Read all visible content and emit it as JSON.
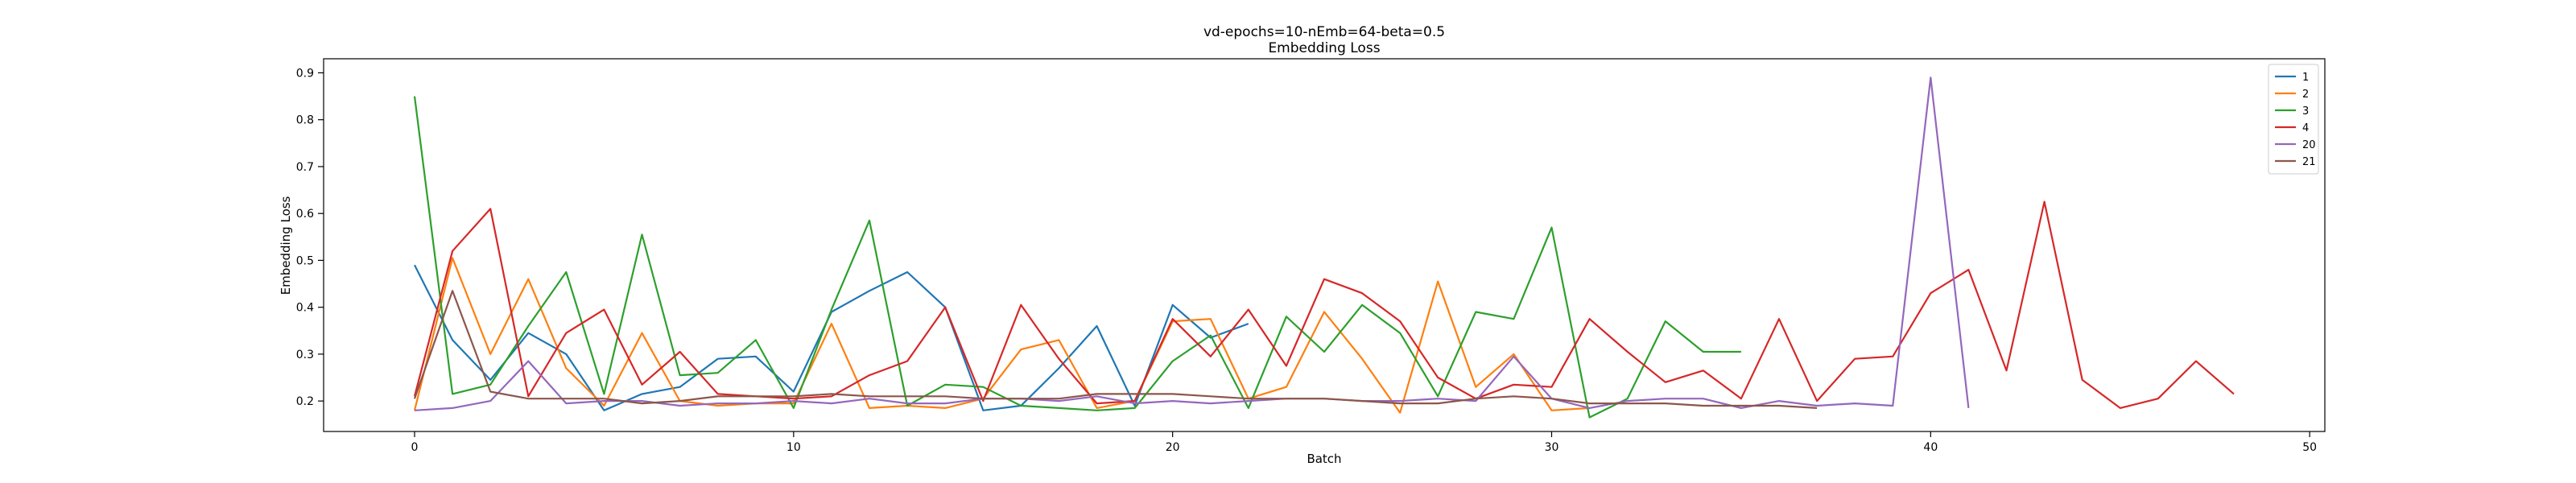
{
  "chart_data": {
    "type": "line",
    "title": "vd-epochs=10-nEmb=64-beta=0.5",
    "subtitle": "Embedding Loss",
    "xlabel": "Batch",
    "ylabel": "Embedding Loss",
    "xlim": [
      -2.4,
      50.4
    ],
    "ylim": [
      0.135,
      0.93
    ],
    "xticks": [
      0,
      10,
      20,
      30,
      40,
      50
    ],
    "yticks": [
      0.2,
      0.3,
      0.4,
      0.5,
      0.6,
      0.7,
      0.8,
      0.9
    ],
    "grid": false,
    "legend_position": "top-right",
    "series": [
      {
        "name": "1",
        "color": "#1f77b4",
        "values": [
          0.49,
          0.33,
          0.245,
          0.345,
          0.3,
          0.18,
          0.215,
          0.23,
          0.29,
          0.295,
          0.22,
          0.39,
          0.435,
          0.475,
          0.4,
          0.18,
          0.19,
          0.27,
          0.36,
          0.19,
          0.405,
          0.335,
          0.365
        ]
      },
      {
        "name": "2",
        "color": "#ff7f0e",
        "values": [
          0.18,
          0.505,
          0.3,
          0.46,
          0.27,
          0.19,
          0.345,
          0.2,
          0.19,
          0.195,
          0.195,
          0.365,
          0.185,
          0.19,
          0.185,
          0.205,
          0.31,
          0.33,
          0.185,
          0.2,
          0.37,
          0.375,
          0.205,
          0.23,
          0.39,
          0.29,
          0.175,
          0.455,
          0.23,
          0.3,
          0.18,
          0.185
        ]
      },
      {
        "name": "3",
        "color": "#2ca02c",
        "values": [
          0.85,
          0.215,
          0.235,
          0.36,
          0.475,
          0.215,
          0.555,
          0.255,
          0.26,
          0.33,
          0.185,
          0.395,
          0.585,
          0.19,
          0.235,
          0.23,
          0.19,
          0.185,
          0.18,
          0.185,
          0.285,
          0.34,
          0.185,
          0.38,
          0.305,
          0.405,
          0.345,
          0.21,
          0.39,
          0.375,
          0.57,
          0.165,
          0.205,
          0.37,
          0.305,
          0.305
        ]
      },
      {
        "name": "4",
        "color": "#d62728",
        "values": [
          0.21,
          0.52,
          0.61,
          0.21,
          0.345,
          0.395,
          0.235,
          0.305,
          0.215,
          0.21,
          0.205,
          0.21,
          0.255,
          0.285,
          0.4,
          0.2,
          0.405,
          0.29,
          0.195,
          0.2,
          0.375,
          0.295,
          0.395,
          0.275,
          0.46,
          0.43,
          0.37,
          0.25,
          0.205,
          0.235,
          0.23,
          0.375,
          0.305,
          0.24,
          0.265,
          0.205,
          0.375,
          0.2,
          0.29,
          0.295,
          0.43,
          0.48,
          0.265,
          0.625,
          0.245,
          0.185,
          0.205,
          0.285,
          0.215
        ]
      },
      {
        "name": "20",
        "color": "#9467bd",
        "values": [
          0.18,
          0.185,
          0.2,
          0.285,
          0.195,
          0.2,
          0.2,
          0.19,
          0.195,
          0.195,
          0.2,
          0.195,
          0.205,
          0.195,
          0.195,
          0.205,
          0.205,
          0.2,
          0.21,
          0.195,
          0.2,
          0.195,
          0.2,
          0.205,
          0.205,
          0.2,
          0.2,
          0.205,
          0.2,
          0.295,
          0.205,
          0.185,
          0.2,
          0.205,
          0.205,
          0.185,
          0.2,
          0.19,
          0.195,
          0.19,
          0.89,
          0.185
        ]
      },
      {
        "name": "21",
        "color": "#8c564b",
        "values": [
          0.205,
          0.435,
          0.22,
          0.205,
          0.205,
          0.205,
          0.195,
          0.2,
          0.21,
          0.21,
          0.21,
          0.215,
          0.21,
          0.21,
          0.21,
          0.205,
          0.205,
          0.205,
          0.215,
          0.215,
          0.215,
          0.21,
          0.205,
          0.205,
          0.205,
          0.2,
          0.195,
          0.195,
          0.205,
          0.21,
          0.205,
          0.195,
          0.195,
          0.195,
          0.19,
          0.19,
          0.19,
          0.185
        ]
      }
    ]
  }
}
